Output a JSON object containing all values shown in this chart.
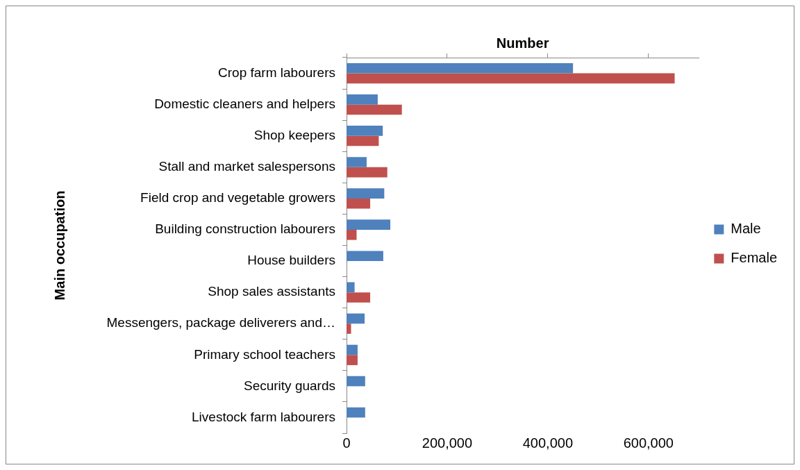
{
  "chart_data": {
    "type": "bar",
    "orientation": "horizontal",
    "xlabel": "Number",
    "ylabel": "Main occupation",
    "categories": [
      "Crop farm labourers",
      "Domestic cleaners and helpers",
      "Shop keepers",
      "Stall and market salespersons",
      "Field crop and vegetable growers",
      "Building construction labourers",
      "House builders",
      "Shop sales assistants",
      "Messengers, package deliverers and…",
      "Primary school teachers",
      "Security guards",
      "Livestock farm labourers"
    ],
    "series": [
      {
        "name": "Male",
        "color": "#4f81bd",
        "values": [
          450000,
          62000,
          72000,
          40000,
          75000,
          87000,
          73000,
          16000,
          36000,
          22000,
          37000,
          37000
        ]
      },
      {
        "name": "Female",
        "color": "#c0504d",
        "values": [
          652000,
          110000,
          64000,
          81000,
          47000,
          20000,
          null,
          47000,
          9000,
          22000,
          null,
          null
        ]
      }
    ],
    "xlim": [
      0,
      700000
    ],
    "xticks": [
      {
        "value": 0,
        "label": "0"
      },
      {
        "value": 200000,
        "label": "200,000"
      },
      {
        "value": 400000,
        "label": "400,000"
      },
      {
        "value": 600000,
        "label": "600,000"
      }
    ],
    "grid": false,
    "legend": "right"
  }
}
